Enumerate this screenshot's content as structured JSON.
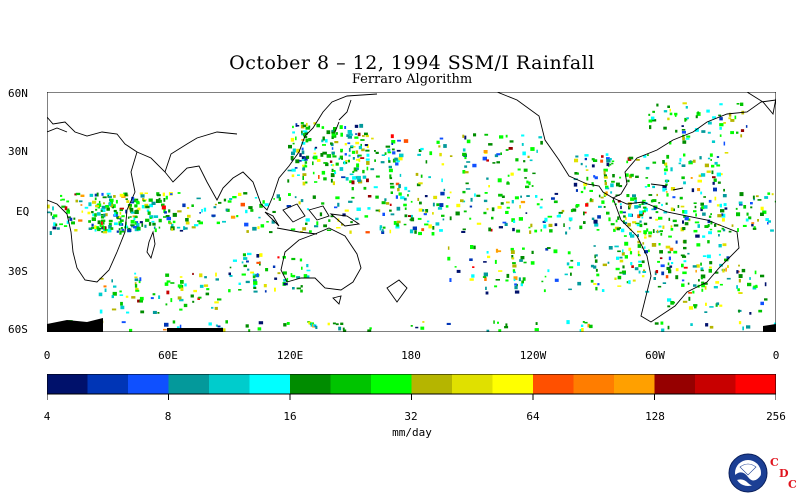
{
  "title": "October 8 – 12, 1994 SSM/I Rainfall",
  "subtitle": "Ferraro Algorithm",
  "lat_labels": [
    "60N",
    "30N",
    "EQ",
    "30S",
    "60S"
  ],
  "lon_labels": [
    "0",
    "60E",
    "120E",
    "180",
    "120W",
    "60W",
    "0"
  ],
  "colorbar": {
    "unit": "mm/day",
    "tick_labels": [
      "4",
      "8",
      "16",
      "32",
      "64",
      "128",
      "256"
    ],
    "colors": [
      "#00116b",
      "#0035b6",
      "#0f50ff",
      "#04999b",
      "#00cccc",
      "#00ffff",
      "#008c00",
      "#00c400",
      "#00ff00",
      "#b5b500",
      "#e0e000",
      "#ffff00",
      "#ff5000",
      "#ff7d00",
      "#ffa000",
      "#960000",
      "#c80000",
      "#ff0000"
    ]
  },
  "logo": {
    "text": "NOAA",
    "letters": [
      "C",
      "D",
      "C"
    ]
  }
}
